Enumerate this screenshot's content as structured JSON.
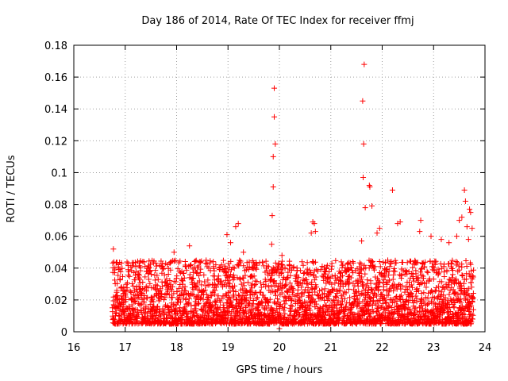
{
  "chart_data": {
    "type": "scatter",
    "title": "Day 186 of 2014, Rate Of TEC Index for receiver ffmj",
    "xlabel": "GPS time / hours",
    "ylabel": "ROTI / TECUs",
    "xlim": [
      16,
      24
    ],
    "ylim": [
      0,
      0.18
    ],
    "xticks": [
      "16",
      "17",
      "18",
      "19",
      "20",
      "21",
      "22",
      "23",
      "24"
    ],
    "yticks": [
      "0",
      "0.02",
      "0.04",
      "0.06",
      "0.08",
      "0.1",
      "0.12",
      "0.14",
      "0.16",
      "0.18"
    ],
    "grid": true,
    "marker": "+",
    "color": "#ff0000",
    "data_extent_hours": [
      16.75,
      23.78
    ],
    "baseline_band": [
      0.005,
      0.045
    ],
    "highlight_points": [
      {
        "x": 16.77,
        "y": 0.052
      },
      {
        "x": 16.8,
        "y": 0.04
      },
      {
        "x": 17.95,
        "y": 0.05
      },
      {
        "x": 18.25,
        "y": 0.054
      },
      {
        "x": 18.98,
        "y": 0.061
      },
      {
        "x": 19.05,
        "y": 0.056
      },
      {
        "x": 19.15,
        "y": 0.066
      },
      {
        "x": 19.2,
        "y": 0.068
      },
      {
        "x": 19.3,
        "y": 0.05
      },
      {
        "x": 19.9,
        "y": 0.153
      },
      {
        "x": 19.9,
        "y": 0.135
      },
      {
        "x": 19.92,
        "y": 0.118
      },
      {
        "x": 19.88,
        "y": 0.11
      },
      {
        "x": 19.88,
        "y": 0.091
      },
      {
        "x": 19.86,
        "y": 0.073
      },
      {
        "x": 19.85,
        "y": 0.055
      },
      {
        "x": 20.05,
        "y": 0.048
      },
      {
        "x": 20.65,
        "y": 0.069
      },
      {
        "x": 20.68,
        "y": 0.068
      },
      {
        "x": 20.62,
        "y": 0.062
      },
      {
        "x": 20.7,
        "y": 0.063
      },
      {
        "x": 21.6,
        "y": 0.057
      },
      {
        "x": 21.65,
        "y": 0.168
      },
      {
        "x": 21.62,
        "y": 0.145
      },
      {
        "x": 21.64,
        "y": 0.118
      },
      {
        "x": 21.63,
        "y": 0.097
      },
      {
        "x": 21.75,
        "y": 0.092
      },
      {
        "x": 21.76,
        "y": 0.091
      },
      {
        "x": 21.67,
        "y": 0.078
      },
      {
        "x": 21.8,
        "y": 0.079
      },
      {
        "x": 21.9,
        "y": 0.062
      },
      {
        "x": 21.95,
        "y": 0.065
      },
      {
        "x": 22.2,
        "y": 0.089
      },
      {
        "x": 22.35,
        "y": 0.069
      },
      {
        "x": 22.3,
        "y": 0.068
      },
      {
        "x": 22.75,
        "y": 0.07
      },
      {
        "x": 22.73,
        "y": 0.063
      },
      {
        "x": 22.95,
        "y": 0.06
      },
      {
        "x": 23.15,
        "y": 0.058
      },
      {
        "x": 23.3,
        "y": 0.056
      },
      {
        "x": 23.45,
        "y": 0.06
      },
      {
        "x": 23.5,
        "y": 0.07
      },
      {
        "x": 23.55,
        "y": 0.072
      },
      {
        "x": 23.6,
        "y": 0.089
      },
      {
        "x": 23.62,
        "y": 0.082
      },
      {
        "x": 23.65,
        "y": 0.066
      },
      {
        "x": 23.7,
        "y": 0.077
      },
      {
        "x": 23.72,
        "y": 0.075
      },
      {
        "x": 23.68,
        "y": 0.058
      },
      {
        "x": 23.75,
        "y": 0.065
      },
      {
        "x": 20.0,
        "y": 0.002
      },
      {
        "x": 19.85,
        "y": 0.015
      }
    ]
  }
}
